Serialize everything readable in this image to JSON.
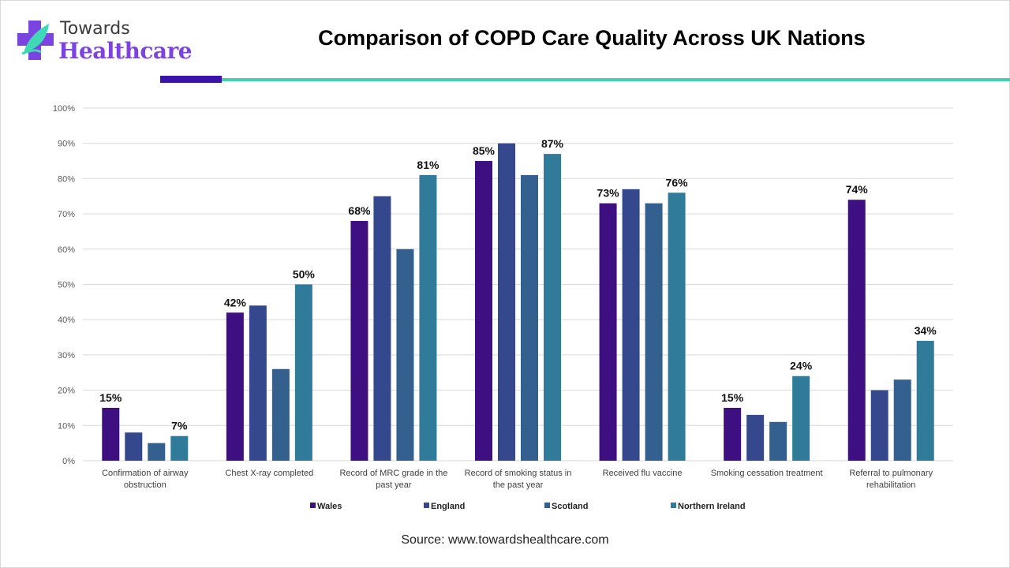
{
  "brand": {
    "line1": "Towards",
    "line2": "Healthcare"
  },
  "header": {
    "title": "Comparison of COPD Care Quality Across UK Nations"
  },
  "source": "Source: www.towardshealthcare.com",
  "chart_data": {
    "type": "bar",
    "title": "Comparison of COPD Care Quality Across UK Nations",
    "xlabel": "",
    "ylabel": "",
    "ylim": [
      0,
      100
    ],
    "yticks": [
      "0%",
      "10%",
      "20%",
      "30%",
      "40%",
      "50%",
      "60%",
      "70%",
      "80%",
      "90%",
      "100%"
    ],
    "grid": true,
    "legend_position": "bottom",
    "categories": [
      [
        "Confirmation of airway",
        "obstruction"
      ],
      [
        "Chest X-ray completed"
      ],
      [
        "Record of MRC grade in the",
        "past year"
      ],
      [
        "Record of smoking status in",
        "the past year"
      ],
      [
        "Received flu vaccine"
      ],
      [
        "Smoking cessation treatment"
      ],
      [
        "Referral to pulmonary",
        "rehabilitation"
      ]
    ],
    "series": [
      {
        "name": "Wales",
        "color": "#3d0f80",
        "values": [
          15,
          42,
          68,
          85,
          73,
          15,
          74
        ],
        "labeled": [
          true,
          true,
          true,
          true,
          true,
          true,
          true
        ]
      },
      {
        "name": "England",
        "color": "#35488e",
        "values": [
          8,
          44,
          75,
          90,
          77,
          13,
          20
        ],
        "labeled": [
          false,
          false,
          false,
          false,
          false,
          false,
          false
        ]
      },
      {
        "name": "Scotland",
        "color": "#33608f",
        "values": [
          5,
          26,
          60,
          81,
          73,
          11,
          23
        ],
        "labeled": [
          false,
          false,
          false,
          false,
          false,
          false,
          false
        ]
      },
      {
        "name": "Northern Ireland",
        "color": "#2f7b99",
        "values": [
          7,
          50,
          81,
          87,
          76,
          24,
          34
        ],
        "labeled": [
          true,
          true,
          true,
          true,
          true,
          true,
          true
        ]
      }
    ]
  }
}
